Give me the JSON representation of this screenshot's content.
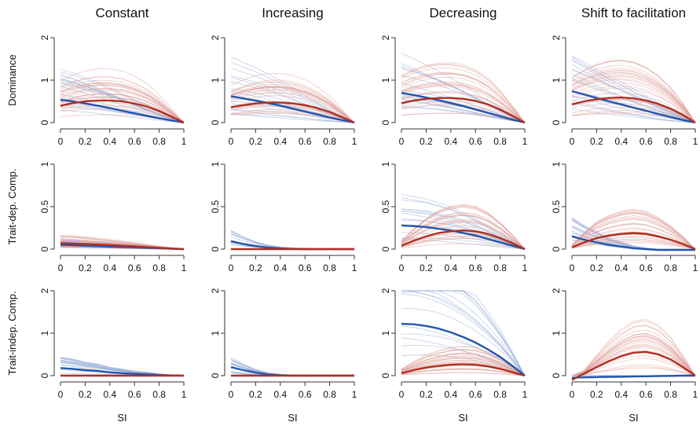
{
  "figure": {
    "columns": [
      "Constant",
      "Increasing",
      "Decreasing",
      "Shift to facilitation"
    ],
    "rows": [
      "Dominance",
      "Trait-dep. Comp.",
      "Trait-indep. Comp."
    ],
    "xlabel": "SI"
  },
  "chart_data": {
    "type": "line",
    "layout": "small-multiples grid (3 rows x 4 columns)",
    "x_range": [
      0,
      1
    ],
    "x_ticks": [
      0,
      0.2,
      0.4,
      0.6,
      0.8,
      1
    ],
    "x_tick_labels": [
      "0",
      "0.2",
      "0.4",
      "0.6",
      "0.8",
      "1"
    ],
    "xlabel": "SI",
    "row_axes": [
      {
        "row": "Dominance",
        "ylim": [
          0,
          2
        ],
        "y_ticks": [
          0,
          1,
          2
        ],
        "y_tick_labels": [
          "0",
          "1",
          "2"
        ]
      },
      {
        "row": "Trait-dep. Comp.",
        "ylim": [
          0,
          1
        ],
        "y_ticks": [
          0,
          0.5,
          1
        ],
        "y_tick_labels": [
          "0",
          "0.5",
          "1"
        ]
      },
      {
        "row": "Trait-indep. Comp.",
        "ylim": [
          0,
          2
        ],
        "y_ticks": [
          0,
          1,
          2
        ],
        "y_tick_labels": [
          "0",
          "1",
          "2"
        ]
      }
    ],
    "colors": {
      "blue": "#2255aa",
      "red": "#b03020",
      "blue_faint": "#8fa6d6",
      "red_faint": "#e0a19a"
    },
    "x": [
      0,
      0.1,
      0.2,
      0.3,
      0.4,
      0.5,
      0.6,
      0.7,
      0.8,
      0.9,
      1
    ],
    "panels": [
      {
        "row": "Dominance",
        "column": "Constant",
        "series": [
          {
            "color": "blue",
            "values": [
              0.54,
              0.5,
              0.45,
              0.4,
              0.34,
              0.28,
              0.22,
              0.16,
              0.1,
              0.05,
              0.0
            ]
          },
          {
            "color": "red",
            "values": [
              0.4,
              0.46,
              0.5,
              0.52,
              0.52,
              0.5,
              0.45,
              0.38,
              0.27,
              0.14,
              0.0
            ]
          }
        ]
      },
      {
        "row": "Dominance",
        "column": "Increasing",
        "series": [
          {
            "color": "blue",
            "values": [
              0.62,
              0.57,
              0.52,
              0.46,
              0.4,
              0.33,
              0.26,
              0.19,
              0.12,
              0.06,
              0.0
            ]
          },
          {
            "color": "red",
            "values": [
              0.36,
              0.41,
              0.45,
              0.47,
              0.47,
              0.45,
              0.41,
              0.34,
              0.25,
              0.13,
              0.0
            ]
          }
        ]
      },
      {
        "row": "Dominance",
        "column": "Decreasing",
        "series": [
          {
            "color": "blue",
            "values": [
              0.7,
              0.65,
              0.59,
              0.53,
              0.46,
              0.39,
              0.31,
              0.23,
              0.15,
              0.07,
              0.0
            ]
          },
          {
            "color": "red",
            "values": [
              0.46,
              0.52,
              0.56,
              0.58,
              0.58,
              0.56,
              0.51,
              0.43,
              0.31,
              0.16,
              0.0
            ]
          }
        ]
      },
      {
        "row": "Dominance",
        "column": "Shift to facilitation",
        "series": [
          {
            "color": "blue",
            "values": [
              0.74,
              0.66,
              0.58,
              0.5,
              0.43,
              0.35,
              0.28,
              0.2,
              0.13,
              0.06,
              0.0
            ]
          },
          {
            "color": "red",
            "values": [
              0.43,
              0.5,
              0.55,
              0.58,
              0.59,
              0.57,
              0.52,
              0.44,
              0.33,
              0.18,
              0.0
            ]
          }
        ]
      },
      {
        "row": "Trait-dep. Comp.",
        "column": "Constant",
        "series": [
          {
            "color": "blue",
            "values": [
              0.05,
              0.045,
              0.04,
              0.035,
              0.03,
              0.025,
              0.02,
              0.015,
              0.01,
              0.005,
              0.0
            ]
          },
          {
            "color": "red",
            "values": [
              0.07,
              0.066,
              0.061,
              0.055,
              0.048,
              0.04,
              0.032,
              0.023,
              0.015,
              0.007,
              0.0
            ]
          }
        ]
      },
      {
        "row": "Trait-dep. Comp.",
        "column": "Increasing",
        "series": [
          {
            "color": "blue",
            "values": [
              0.09,
              0.06,
              0.035,
              0.018,
              0.008,
              0.003,
              0.0,
              0.0,
              0.0,
              0.0,
              0.0
            ]
          },
          {
            "color": "red",
            "values": [
              0.0,
              0.0,
              0.0,
              0.0,
              0.0,
              0.0,
              0.0,
              0.0,
              0.0,
              0.0,
              0.0
            ]
          }
        ]
      },
      {
        "row": "Trait-dep. Comp.",
        "column": "Decreasing",
        "series": [
          {
            "color": "blue",
            "values": [
              0.28,
              0.27,
              0.26,
              0.24,
              0.22,
              0.19,
              0.16,
              0.12,
              0.08,
              0.04,
              0.0
            ]
          },
          {
            "color": "red",
            "values": [
              0.04,
              0.1,
              0.15,
              0.19,
              0.21,
              0.22,
              0.21,
              0.18,
              0.13,
              0.07,
              0.0
            ]
          }
        ]
      },
      {
        "row": "Trait-dep. Comp.",
        "column": "Shift to facilitation",
        "series": [
          {
            "color": "blue",
            "values": [
              0.15,
              0.11,
              0.08,
              0.05,
              0.03,
              0.01,
              0.0,
              -0.01,
              -0.01,
              -0.01,
              -0.01
            ]
          },
          {
            "color": "red",
            "values": [
              0.02,
              0.08,
              0.13,
              0.16,
              0.18,
              0.19,
              0.18,
              0.15,
              0.11,
              0.06,
              0.0
            ]
          }
        ]
      },
      {
        "row": "Trait-indep. Comp.",
        "column": "Constant",
        "series": [
          {
            "color": "blue",
            "values": [
              0.18,
              0.16,
              0.13,
              0.11,
              0.08,
              0.06,
              0.04,
              0.03,
              0.015,
              0.005,
              0.0
            ]
          },
          {
            "color": "red",
            "values": [
              0.0,
              0.0,
              0.0,
              0.0,
              0.0,
              0.0,
              0.0,
              0.0,
              0.0,
              0.0,
              0.0
            ]
          }
        ]
      },
      {
        "row": "Trait-indep. Comp.",
        "column": "Increasing",
        "series": [
          {
            "color": "blue",
            "values": [
              0.2,
              0.13,
              0.07,
              0.03,
              0.01,
              0.0,
              0.0,
              0.0,
              0.0,
              0.0,
              0.0
            ]
          },
          {
            "color": "red",
            "values": [
              0.0,
              0.0,
              0.0,
              0.0,
              0.0,
              0.0,
              0.0,
              0.0,
              0.0,
              0.0,
              0.0
            ]
          }
        ]
      },
      {
        "row": "Trait-indep. Comp.",
        "column": "Decreasing",
        "series": [
          {
            "color": "blue",
            "values": [
              1.22,
              1.21,
              1.17,
              1.11,
              1.02,
              0.91,
              0.78,
              0.62,
              0.44,
              0.23,
              0.0
            ]
          },
          {
            "color": "red",
            "values": [
              0.06,
              0.13,
              0.19,
              0.23,
              0.26,
              0.27,
              0.26,
              0.22,
              0.16,
              0.08,
              0.0
            ]
          }
        ]
      },
      {
        "row": "Trait-indep. Comp.",
        "column": "Shift to facilitation",
        "series": [
          {
            "color": "blue",
            "values": [
              -0.05,
              -0.04,
              -0.035,
              -0.03,
              -0.025,
              -0.02,
              -0.015,
              -0.01,
              -0.005,
              0.0,
              0.0
            ]
          },
          {
            "color": "red",
            "values": [
              -0.1,
              0.05,
              0.2,
              0.34,
              0.46,
              0.54,
              0.56,
              0.5,
              0.38,
              0.2,
              0.0
            ]
          }
        ]
      }
    ]
  }
}
